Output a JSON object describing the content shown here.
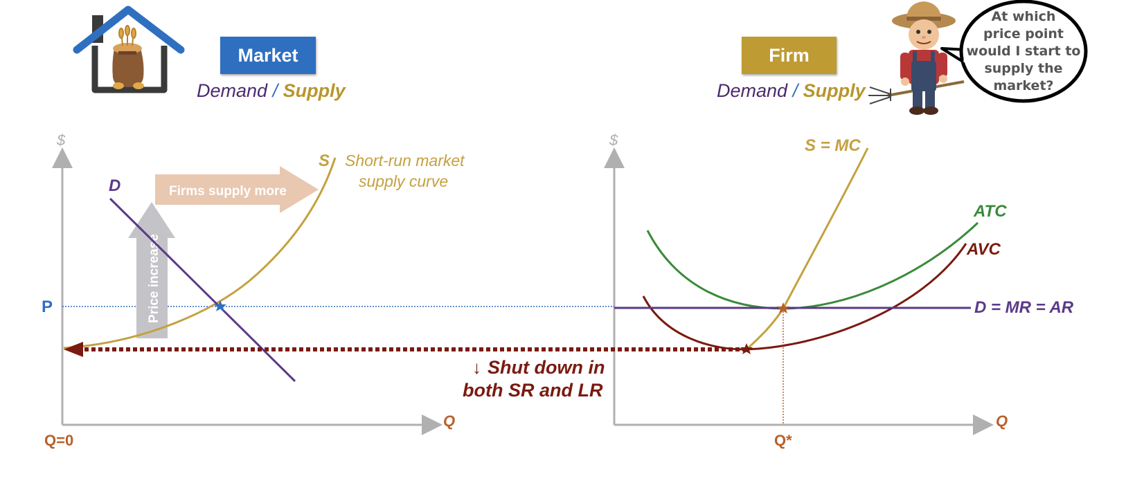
{
  "market": {
    "badge": "Market",
    "demand_word": "Demand",
    "slash": "/",
    "supply_word": "Supply",
    "axis_y": "$",
    "axis_x": "Q",
    "label_p": "P",
    "label_q0": "Q=0",
    "label_d": "D",
    "label_s": "S",
    "supply_note_line1": "Short-run market",
    "supply_note_line2": "supply curve",
    "arrow_supply": "Firms supply more",
    "arrow_price": "Price increase"
  },
  "firm": {
    "badge": "Firm",
    "demand_word": "Demand",
    "slash": "/",
    "supply_word": "Supply",
    "axis_y": "$",
    "axis_x": "Q",
    "label_smc": "S = MC",
    "label_atc": "ATC",
    "label_avc": "AVC",
    "label_dmr": "D = MR = AR",
    "label_qstar": "Q*"
  },
  "shutdown": {
    "line1": "Shut down in",
    "line2": "both SR and LR",
    "arrow_glyph": "↓"
  },
  "speech_bubble": {
    "lines": [
      "At which",
      "price point",
      "would I start to",
      "supply the",
      "market?"
    ]
  },
  "colors": {
    "market_badge": "#2f6fc0",
    "firm_badge": "#bf9b34",
    "demand": "#5a3a8a",
    "supply": "#c4a13f",
    "atc": "#3a8a3a",
    "avc": "#7a1a10",
    "price_line": "#2f6fc0",
    "axis": "#b0b0b0",
    "q_label": "#b8602a"
  },
  "icons": [
    "house-grain-icon",
    "farmer-icon",
    "speech-bubble-icon"
  ]
}
